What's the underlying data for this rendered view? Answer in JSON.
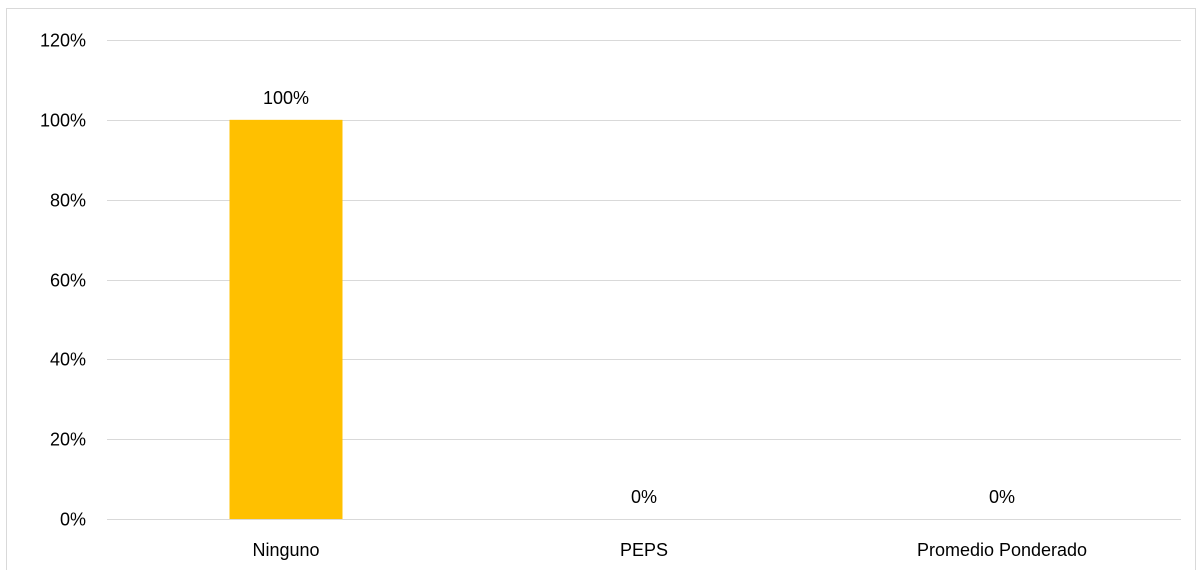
{
  "chart_data": {
    "type": "bar",
    "categories": [
      "Ninguno",
      "PEPS",
      "Promedio Ponderado"
    ],
    "values": [
      1.0,
      0.0,
      0.0
    ],
    "data_labels": [
      "100%",
      "0%",
      "0%"
    ],
    "ylim": [
      0,
      1.2
    ],
    "yticks": [
      0,
      0.2,
      0.4,
      0.6,
      0.8,
      1.0,
      1.2
    ],
    "ytick_labels": [
      "0%",
      "20%",
      "40%",
      "60%",
      "80%",
      "100%",
      "120%"
    ],
    "title": "",
    "xlabel": "",
    "ylabel": "",
    "grid": true,
    "legend": "none",
    "colors": {
      "bar": "#FFC000",
      "grid": "#d9d9d9",
      "axis": "#d9d9d9"
    }
  }
}
